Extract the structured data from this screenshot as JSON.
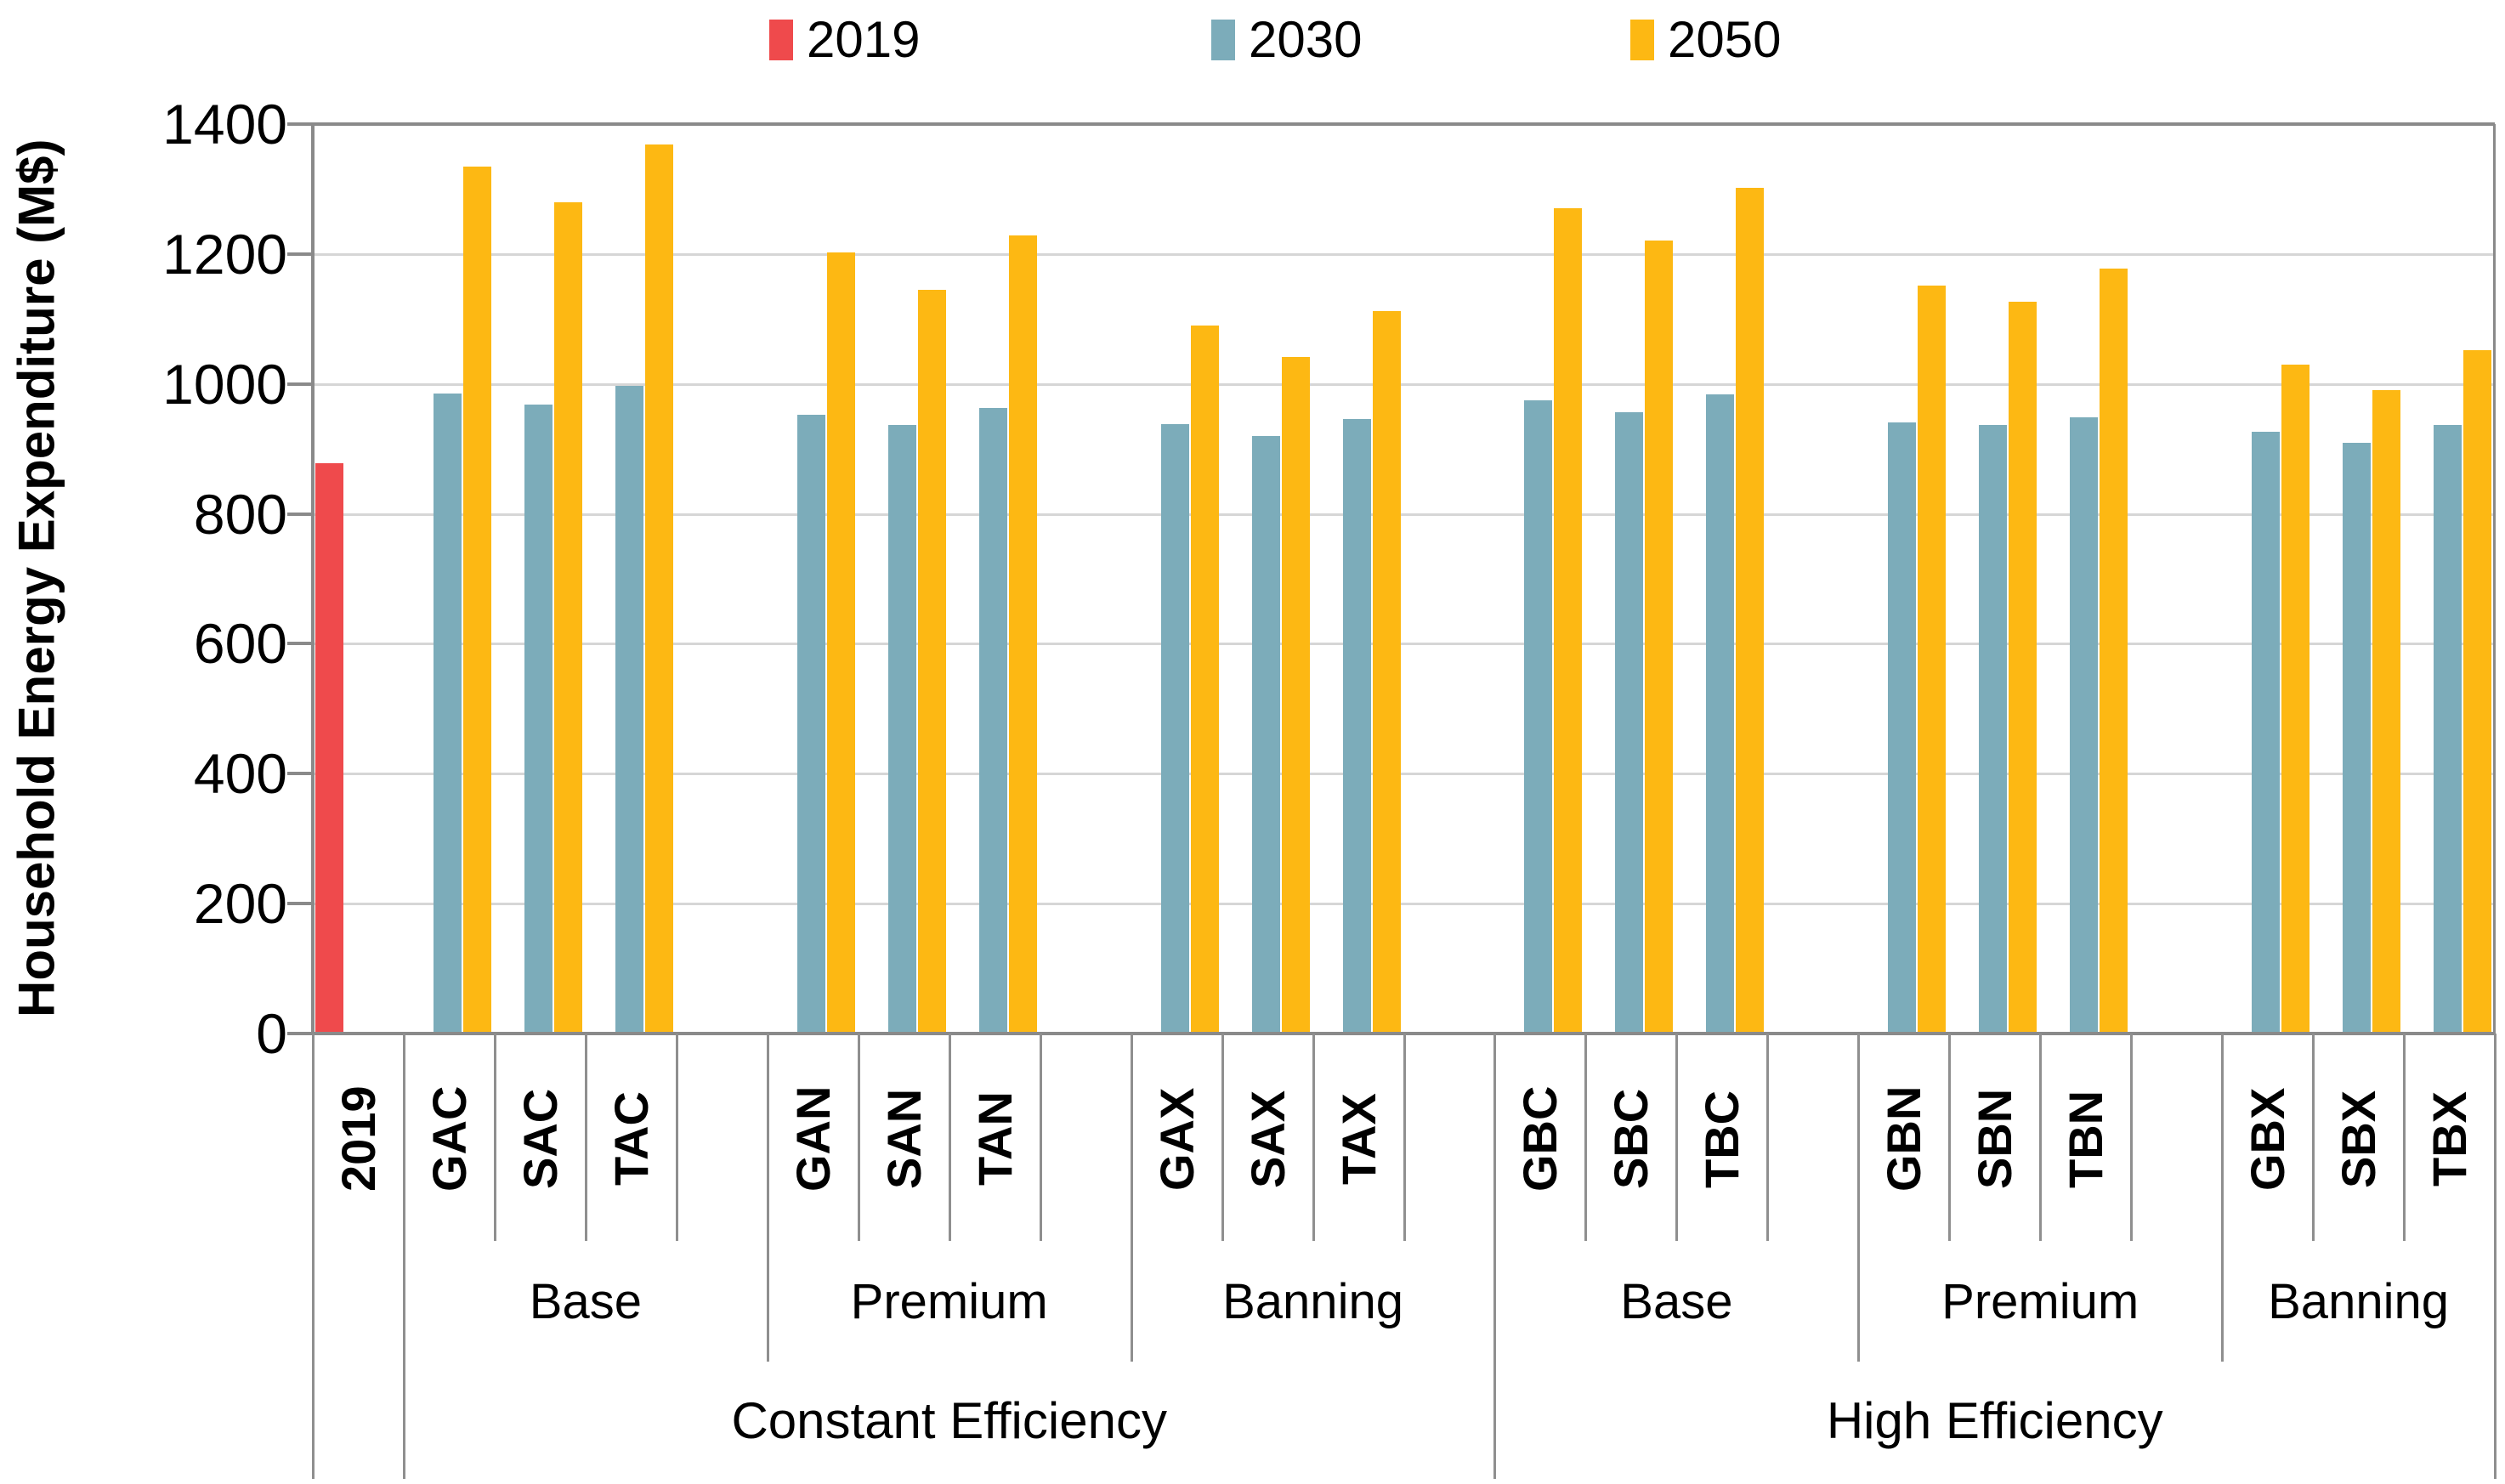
{
  "legend": {
    "items": [
      {
        "label": "2019",
        "color": "#ef4a4c"
      },
      {
        "label": "2030",
        "color": "#7cacba"
      },
      {
        "label": "2050",
        "color": "#fdb813"
      }
    ]
  },
  "y_axis": {
    "title": "Household Energy Expenditure (M$)",
    "tick_labels": [
      "0",
      "200",
      "400",
      "600",
      "800",
      "1000",
      "1200",
      "1400"
    ]
  },
  "chart_data": {
    "type": "bar",
    "title": "",
    "xlabel": "",
    "ylabel": "Household Energy Expenditure (M$)",
    "ylim": [
      0,
      1400
    ],
    "ytick_step": 200,
    "grid": "horizontal",
    "legend_position": "top",
    "colors": {
      "series_2019": "#ef4a4c",
      "series_2030": "#7cacba",
      "series_2050": "#fdb813",
      "gridline": "#d6d6d6",
      "axis": "#8a8a8a",
      "divider": "#8f8f8f"
    },
    "baseline": {
      "category": "2019",
      "series": "2019",
      "value": 878
    },
    "categories": [
      "GAC",
      "SAC",
      "TAC",
      "GAN",
      "SAN",
      "TAN",
      "GAX",
      "SAX",
      "TAX",
      "GBC",
      "SBC",
      "TBC",
      "GBN",
      "SBN",
      "TBN",
      "GBX",
      "SBX",
      "TBX"
    ],
    "series": [
      {
        "name": "2030",
        "values": [
          985,
          968,
          997,
          952,
          937,
          963,
          938,
          920,
          946,
          975,
          957,
          984,
          941,
          937,
          948,
          926,
          909,
          937
        ]
      },
      {
        "name": "2050",
        "values": [
          1335,
          1280,
          1368,
          1202,
          1145,
          1228,
          1090,
          1041,
          1112,
          1270,
          1221,
          1302,
          1152,
          1127,
          1177,
          1030,
          991,
          1052
        ]
      }
    ],
    "group_labels": [
      "Base",
      "Premium",
      "Banning",
      "Base",
      "Premium",
      "Banning"
    ],
    "super_group_labels": [
      "Constant Efficiency",
      "High Efficiency"
    ]
  }
}
